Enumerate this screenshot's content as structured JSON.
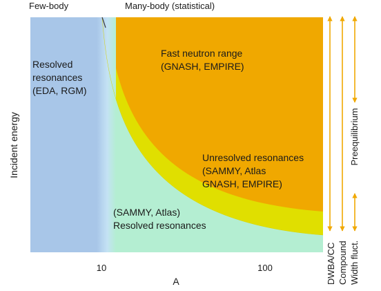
{
  "top_labels": {
    "few_body": "Few-body",
    "many_body": "Many-body (statistical)"
  },
  "axes": {
    "y_label": "Incident energy",
    "x_label": "A",
    "x_ticks": [
      "10",
      "100"
    ]
  },
  "regions": {
    "resolved_left": [
      "Resolved",
      "resonances",
      "(EDA, RGM)"
    ],
    "fast_neutron": [
      "Fast neutron range",
      "(GNASH, EMPIRE)"
    ],
    "unresolved": [
      "Unresolved resonances",
      "(SAMMY, Atlas",
      "GNASH, EMPIRE)"
    ],
    "resolved_right": [
      "(SAMMY, Atlas)",
      "Resolved resonances"
    ]
  },
  "side_labels": {
    "preequilibrium": "Preequilibrium",
    "dwba": "DWBA/CC",
    "compound": "Compound",
    "width_fluct": "Width fluct."
  },
  "colors": {
    "left_region": "#a8c6e8",
    "resolved_region": "#b4eed2",
    "unresolved_band": "#e0df00",
    "fast_region": "#f0a800",
    "arrow": "#f0a800"
  }
}
